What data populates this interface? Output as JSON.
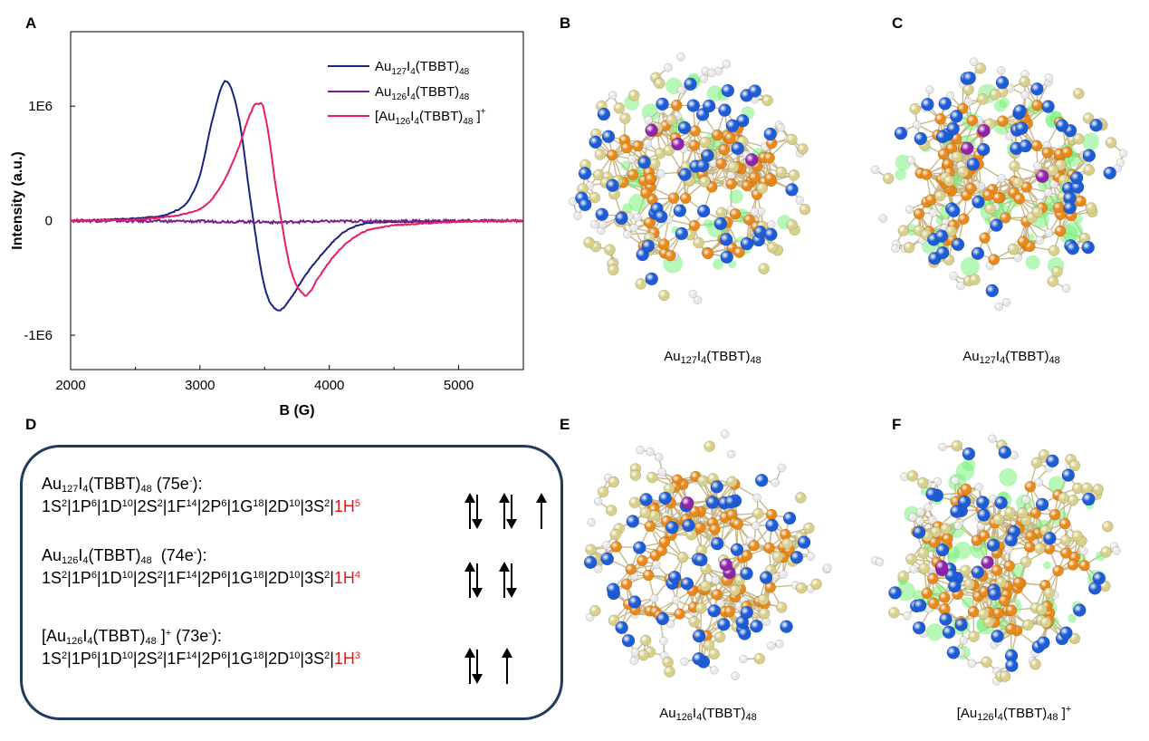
{
  "panels": {
    "A": "A",
    "B": "B",
    "C": "C",
    "D": "D",
    "E": "E",
    "F": "F"
  },
  "chart_data": {
    "type": "line",
    "xlabel": "B (G)",
    "ylabel": "Intensity (a.u.)",
    "xlim": [
      2000,
      5500
    ],
    "ylim": [
      -1300000,
      1650000
    ],
    "xticks": [
      2000,
      3000,
      4000,
      5000
    ],
    "yticks": [
      {
        "value": 1000000,
        "label": "1E6"
      },
      {
        "value": 0,
        "label": "0"
      },
      {
        "value": -1000000,
        "label": "-1E6"
      }
    ],
    "legend_position": "top-right",
    "series": [
      {
        "name": "Au127I4(TBBT)48",
        "color": "#1a237e",
        "x": [
          2000,
          2500,
          2700,
          2800,
          2900,
          3000,
          3100,
          3200,
          3300,
          3400,
          3500,
          3600,
          3700,
          3800,
          3900,
          4000,
          4100,
          4200,
          4300,
          4500,
          5000,
          5500
        ],
        "y": [
          0,
          20000,
          40000,
          80000,
          160000,
          400000,
          900000,
          1220000,
          900000,
          100000,
          -580000,
          -780000,
          -680000,
          -500000,
          -350000,
          -220000,
          -110000,
          -50000,
          -20000,
          -10000,
          -5000,
          0
        ]
      },
      {
        "name": "Au126I4(TBBT)48",
        "color": "#7b1f8c",
        "x": [
          2000,
          2500,
          3000,
          3500,
          3600,
          3700,
          4000,
          4500,
          5000,
          5500
        ],
        "y": [
          0,
          -3000,
          -6000,
          -10000,
          -15000,
          -10000,
          -6000,
          -3000,
          -1000,
          0
        ],
        "noisy": true
      },
      {
        "name": "[Au126I4(TBBT)48 ]+",
        "color": "#e91e63",
        "x": [
          2000,
          2500,
          2800,
          3000,
          3100,
          3200,
          3300,
          3400,
          3450,
          3500,
          3600,
          3700,
          3800,
          3850,
          3900,
          4000,
          4100,
          4200,
          4300,
          4500,
          5000,
          5500
        ],
        "y": [
          0,
          10000,
          40000,
          100000,
          200000,
          380000,
          640000,
          960000,
          1020000,
          930000,
          200000,
          -420000,
          -640000,
          -620000,
          -520000,
          -360000,
          -230000,
          -140000,
          -80000,
          -40000,
          -10000,
          0
        ]
      }
    ]
  },
  "legend": [
    {
      "base": "Au",
      "a": "127",
      "mid": "I",
      "b": "4",
      "tail": "(TBBT)",
      "c": "48",
      "pre": "",
      "post": "",
      "sup": ""
    },
    {
      "base": "Au",
      "a": "126",
      "mid": "I",
      "b": "4",
      "tail": "(TBBT)",
      "c": "48",
      "pre": "",
      "post": "",
      "sup": ""
    },
    {
      "base": "Au",
      "a": "126",
      "mid": "I",
      "b": "4",
      "tail": "(TBBT)",
      "c": "48",
      "pre": "[",
      "post": " ]",
      "sup": "+"
    }
  ],
  "captions": {
    "B": "Au127I4(TBBT)48",
    "C": "Au127I4(TBBT)48",
    "E": "Au126I4(TBBT)48",
    "F": "[Au126I4(TBBT)48 ]+"
  },
  "configs": [
    {
      "title": "Au127I4(TBBT)48 (75e-):",
      "lines": "1S2|1P6|1D10|2S2|1F14|2P6|1G18|2D10|3S2|1H5",
      "arrows": "↑↓ ↑↓ ↑"
    },
    {
      "title": "Au126I4(TBBT)48  (74e-):",
      "lines": "1S2|1P6|1D10|2S2|1F14|2P6|1G18|2D10|3S2|1H4",
      "arrows": "↑↓ ↑↓"
    },
    {
      "title": "[Au126I4(TBBT)48 ]+ (73e-):",
      "lines": "1S2|1P6|1D10|2S2|1F14|2P6|1G18|2D10|3S2|1H3",
      "arrows": "↑↓ ↑"
    }
  ],
  "colors": {
    "gold": "#e8891a",
    "sulfur": "#1e5cd6",
    "carbon": "#d8d08a",
    "hydrogen": "#e8e8e8",
    "iodine": "#8e24aa",
    "spin_density": "#7cf07c",
    "box_border": "#1f3a5f"
  }
}
